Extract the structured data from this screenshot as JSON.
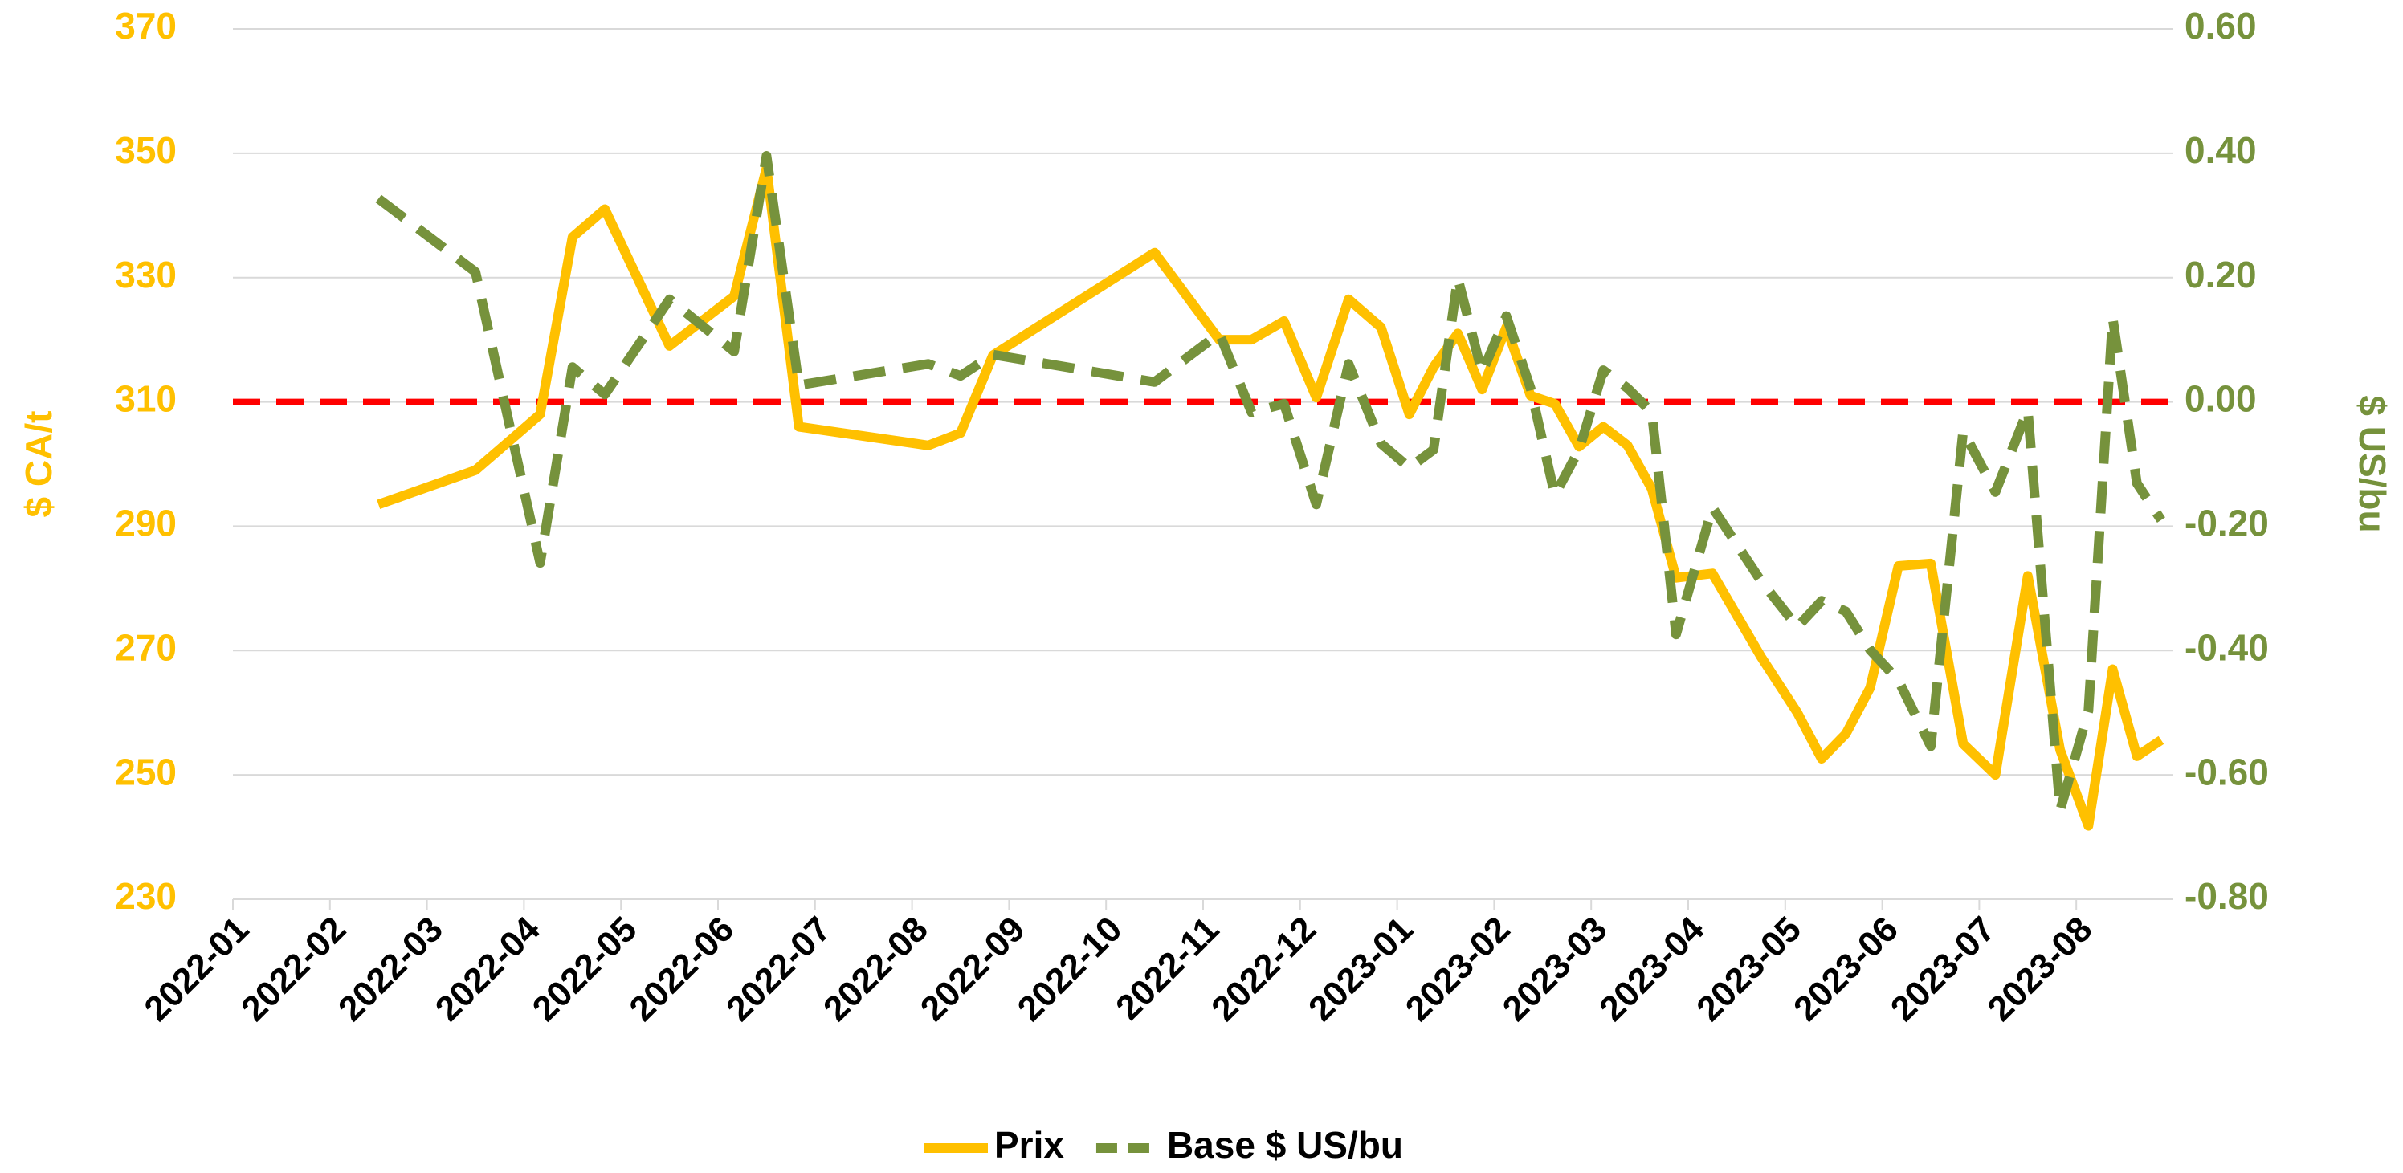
{
  "chart_data": {
    "type": "line",
    "x": [
      "2022-02",
      "2022-03",
      "2022-04",
      "2022-04",
      "2022-04",
      "2022-05",
      "2022-06",
      "2022-06",
      "2022-06",
      "2022-08",
      "2022-08",
      "2022-08",
      "2022-10",
      "2022-11",
      "2022-11",
      "2022-11",
      "2022-12",
      "2022-12",
      "2022-12",
      "2023-01",
      "2023-01",
      "2023-01",
      "2023-01",
      "2023-02",
      "2023-02",
      "2023-02",
      "2023-02",
      "2023-03",
      "2023-03",
      "2023-03",
      "2023-03",
      "2023-04",
      "2023-04",
      "2023-05",
      "2023-05",
      "2023-05",
      "2023-05",
      "2023-06",
      "2023-06",
      "2023-06",
      "2023-07",
      "2023-07",
      "2023-07",
      "2023-08",
      "2023-08",
      "2023-08",
      "2023-08"
    ],
    "xlim": [
      "2022-01",
      "2023-09"
    ],
    "xticks": [
      "2022-01",
      "2022-02",
      "2022-03",
      "2022-04",
      "2022-05",
      "2022-06",
      "2022-07",
      "2022-08",
      "2022-09",
      "2022-10",
      "2022-11",
      "2022-12",
      "2023-01",
      "2023-02",
      "2023-03",
      "2023-04",
      "2023-05",
      "2023-06",
      "2023-07",
      "2023-08"
    ],
    "series": [
      {
        "name": "Prix",
        "color": "#ffc000",
        "dashed": false,
        "values": [
          293.5,
          299,
          308,
          336.5,
          341,
          319,
          327,
          347.6,
          306,
          303,
          305,
          317.5,
          334,
          320,
          320,
          323,
          310.7,
          326.5,
          322,
          308,
          315.6,
          321,
          312,
          322,
          311,
          309.7,
          302.8,
          306,
          303,
          296,
          281.7,
          282.4,
          269,
          260,
          252.6,
          256.6,
          264,
          283.6,
          284,
          255,
          250,
          282,
          254,
          241.8,
          267,
          253,
          255.6
        ]
      },
      {
        "name": "Base $ US/bu",
        "color": "#76923c",
        "dashed": true,
        "axis": "y2",
        "values": [
          0.327,
          0.209,
          -0.259,
          0.056,
          0.012,
          0.165,
          0.081,
          0.396,
          0.027,
          0.061,
          0.042,
          0.076,
          0.032,
          0.11,
          -0.017,
          -0.003,
          -0.165,
          0.061,
          -0.067,
          -0.106,
          -0.077,
          0.199,
          0.047,
          0.138,
          0.022,
          -0.15,
          -0.077,
          0.051,
          0.022,
          -0.017,
          -0.374,
          -0.17,
          -0.288,
          -0.362,
          -0.32,
          -0.337,
          -0.399,
          -0.448,
          -0.554,
          -0.047,
          -0.145,
          -0.013,
          -0.657,
          -0.497,
          0.135,
          -0.131,
          -0.19
        ]
      }
    ],
    "ylim": [
      230,
      370
    ],
    "yticks": [
      230,
      250,
      270,
      290,
      310,
      330,
      350,
      370
    ],
    "y2lim": [
      -0.8,
      0.6
    ],
    "y2ticks": [
      {
        "value": -0.8,
        "label": "-0.80"
      },
      {
        "value": -0.6,
        "label": "-0.60"
      },
      {
        "value": -0.4,
        "label": "-0.40"
      },
      {
        "value": -0.2,
        "label": "-0.20"
      },
      {
        "value": 0,
        "label": "0.00"
      },
      {
        "value": 0.2,
        "label": "0.20"
      },
      {
        "value": 0.4,
        "label": "0.40"
      },
      {
        "value": 0.6,
        "label": "0.60"
      }
    ],
    "ylabel": "$ CA/t",
    "y2label": "$ US/bu",
    "ylabel_color": "#ffc000",
    "y2label_color": "#76923c",
    "reference_line": {
      "axis": "y2",
      "value": 0,
      "color": "#ff0000"
    },
    "grid": true,
    "legend": "bottom"
  }
}
